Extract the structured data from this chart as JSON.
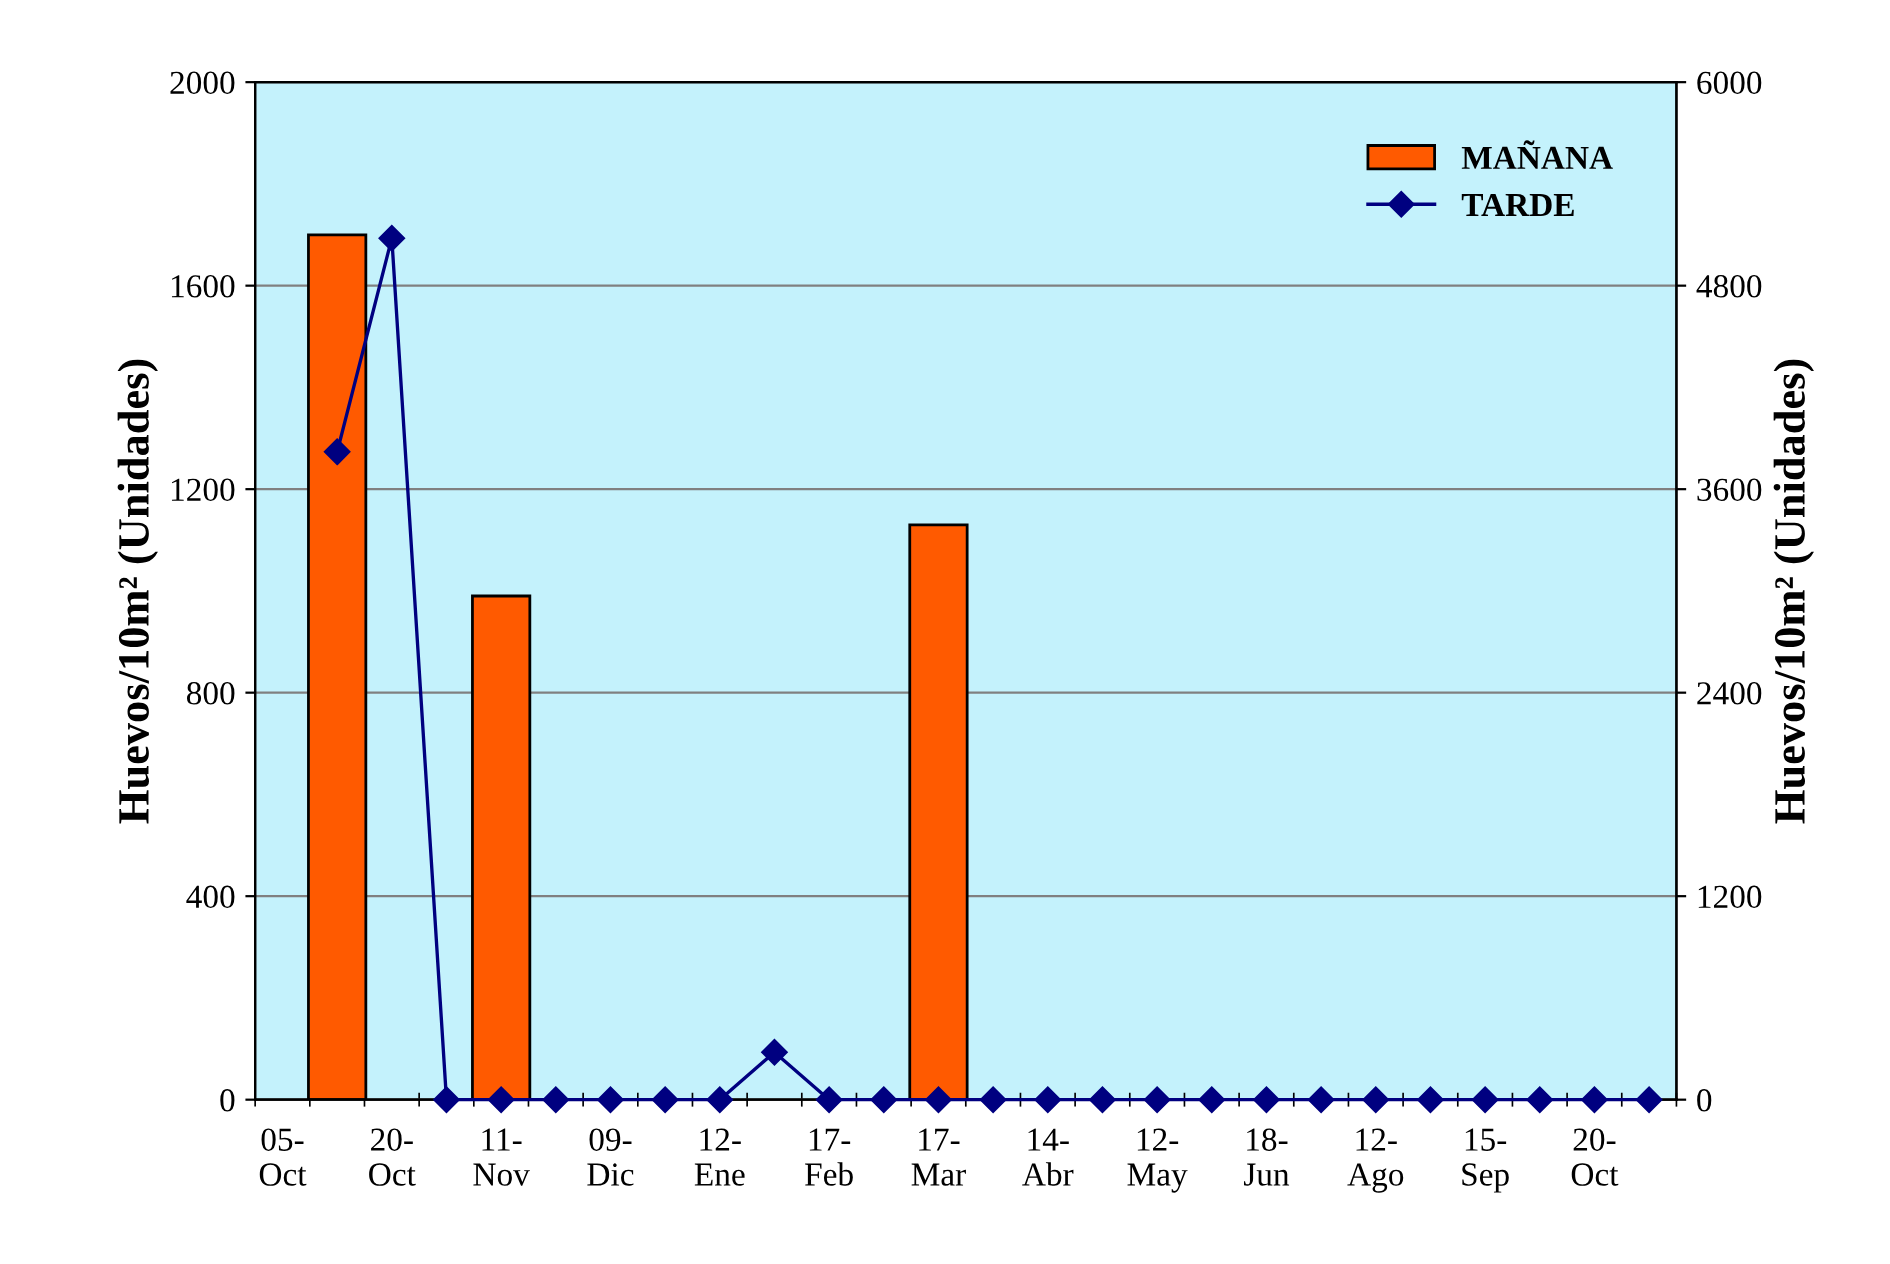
{
  "chart_data": {
    "type": "bar",
    "categories": [
      "05-\nOct",
      null,
      "20-\nOct",
      null,
      "11-\nNov",
      null,
      "09-\nDic",
      null,
      "12-\nEne",
      null,
      "17-\nFeb",
      null,
      "17-\nMar",
      null,
      "14-\nAbr",
      null,
      "12-\nMay",
      null,
      "18-\nJun",
      null,
      "12-\nAgo",
      null,
      "15-\nSep",
      null,
      "20-\nOct",
      null
    ],
    "series": [
      {
        "name": "MAÑANA",
        "color": "#ff5a00",
        "values": [
          null,
          1700,
          null,
          null,
          990,
          null,
          null,
          null,
          null,
          null,
          null,
          null,
          1130,
          null,
          null,
          null,
          null,
          null,
          null,
          null,
          null,
          null,
          null,
          null,
          null,
          null
        ]
      },
      {
        "name": "TARDE",
        "type": "line",
        "axis": "y2",
        "color": "#000080",
        "values": [
          null,
          3820,
          5080,
          0,
          0,
          0,
          0,
          0,
          0,
          280,
          0,
          0,
          0,
          0,
          0,
          0,
          0,
          0,
          0,
          0,
          0,
          0,
          0,
          0,
          0,
          0
        ]
      }
    ],
    "ylabel": "Huevos/10m² (Unidades)",
    "y2label": "Huevos/10m² (Unidades)",
    "ylim": [
      0,
      2000
    ],
    "yticks": [
      0,
      400,
      800,
      1200,
      1600,
      2000
    ],
    "y2lim": [
      0,
      6000
    ],
    "y2ticks": [
      0,
      1200,
      2400,
      3600,
      4800,
      6000
    ],
    "grid": "y",
    "legend": "top right",
    "marker": "diamond",
    "line_style": "solid"
  }
}
